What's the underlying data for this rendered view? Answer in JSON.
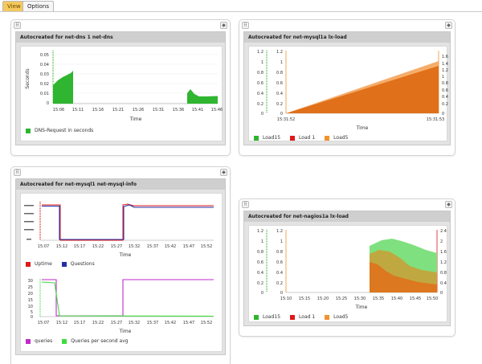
{
  "tabs": [
    {
      "label": "View"
    },
    {
      "label": "Options"
    }
  ],
  "panels": {
    "dns": {
      "title": "Autocreated for net-dns 1 net-dns",
      "ylabel": "Seconds",
      "xlabel": "Time",
      "yticks": [
        "0.05",
        "0.04",
        "0.03",
        "0.02",
        "0.01",
        "0"
      ],
      "xticks": [
        "15:06",
        "15:11",
        "15:16",
        "15:21",
        "15:26",
        "15:31",
        "15:36",
        "15:41",
        "15:46"
      ],
      "legend": [
        {
          "label": "DNS-Request in seconds",
          "color": "#2fb52f"
        }
      ]
    },
    "mysql_load": {
      "title": "Autocreated for net-mysql1a lx-load",
      "xlabel": "Time",
      "yticks_left_outer": [
        "1.2",
        "1",
        "0.8",
        "0.6",
        "0.4",
        "0.2",
        "0"
      ],
      "yticks_left_inner": [
        "1.2",
        "1",
        "0.8",
        "0.6",
        "0.4",
        "0.2",
        "0"
      ],
      "yticks_right": [
        "1.6",
        "1.4",
        "1.2",
        "1",
        "0.8",
        "0.6",
        "0.4",
        "0.2",
        "0"
      ],
      "xticks": [
        "15:31:52",
        "15:31:53"
      ],
      "legend": [
        {
          "label": "Load15",
          "color": "#2fb52f"
        },
        {
          "label": "Load 1",
          "color": "#e01919"
        },
        {
          "label": "Load5",
          "color": "#f0922e"
        }
      ]
    },
    "mysql_info": {
      "title": "Autocreated for net-mysql1 net-mysql-info",
      "xlabel": "Time",
      "xticks": [
        "15:07",
        "15:12",
        "15:17",
        "15:22",
        "15:27",
        "15:32",
        "15:37",
        "15:42",
        "15:47",
        "15:52"
      ],
      "legend1": [
        {
          "label": "Uptime",
          "color": "#e01919"
        },
        {
          "label": "Questions",
          "color": "#2230a8"
        }
      ],
      "yticks2": [
        "30",
        "25",
        "20",
        "15",
        "10",
        "5",
        "0"
      ],
      "legend2": [
        {
          "label": "queries",
          "color": "#c02ac8"
        },
        {
          "label": "Queries per second avg",
          "color": "#3fdc3f"
        }
      ]
    },
    "nagios_load": {
      "title": "Autocreated for net-nagios1a lx-load",
      "xlabel": "Time",
      "yticks_left_outer": [
        "1.2",
        "1",
        "0.8",
        "0.6",
        "0.4",
        "0.2",
        "0"
      ],
      "yticks_left_inner": [
        "1.2",
        "1",
        "0.8",
        "0.6",
        "0.4",
        "0.2",
        "0"
      ],
      "yticks_right": [
        "2.4",
        "2",
        "1.6",
        "1.2",
        "0.8",
        "0.4",
        "0"
      ],
      "xticks": [
        "15:10",
        "15:15",
        "15:20",
        "15:25",
        "15:30",
        "15:35",
        "15:40",
        "15:45",
        "15:50"
      ],
      "legend": [
        {
          "label": "Load15",
          "color": "#2fb52f"
        },
        {
          "label": "Load 1",
          "color": "#e01919"
        },
        {
          "label": "Load5",
          "color": "#f0922e"
        }
      ]
    }
  }
}
